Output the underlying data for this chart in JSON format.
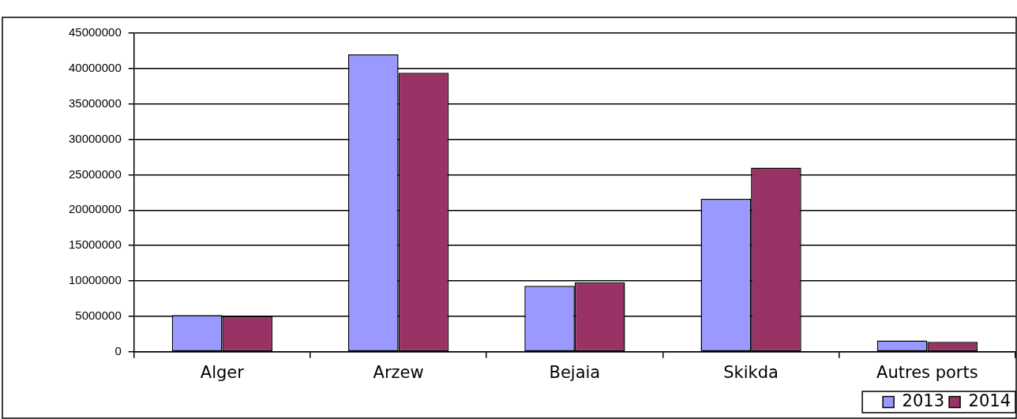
{
  "chart_data": {
    "type": "bar",
    "categories": [
      "Alger",
      "Arzew",
      "Bejaia",
      "Skikda",
      "Autres ports"
    ],
    "series": [
      {
        "name": "2013",
        "color": "#9999ff",
        "values": [
          5200000,
          42000000,
          9300000,
          21600000,
          1600000
        ]
      },
      {
        "name": "2014",
        "color": "#993366",
        "values": [
          5000000,
          39400000,
          9800000,
          26000000,
          1400000
        ]
      }
    ],
    "ylim": [
      0,
      45000000
    ],
    "yticks": [
      0,
      5000000,
      10000000,
      15000000,
      20000000,
      25000000,
      30000000,
      35000000,
      40000000,
      45000000
    ],
    "grid": "y",
    "legend": "bottom right"
  }
}
